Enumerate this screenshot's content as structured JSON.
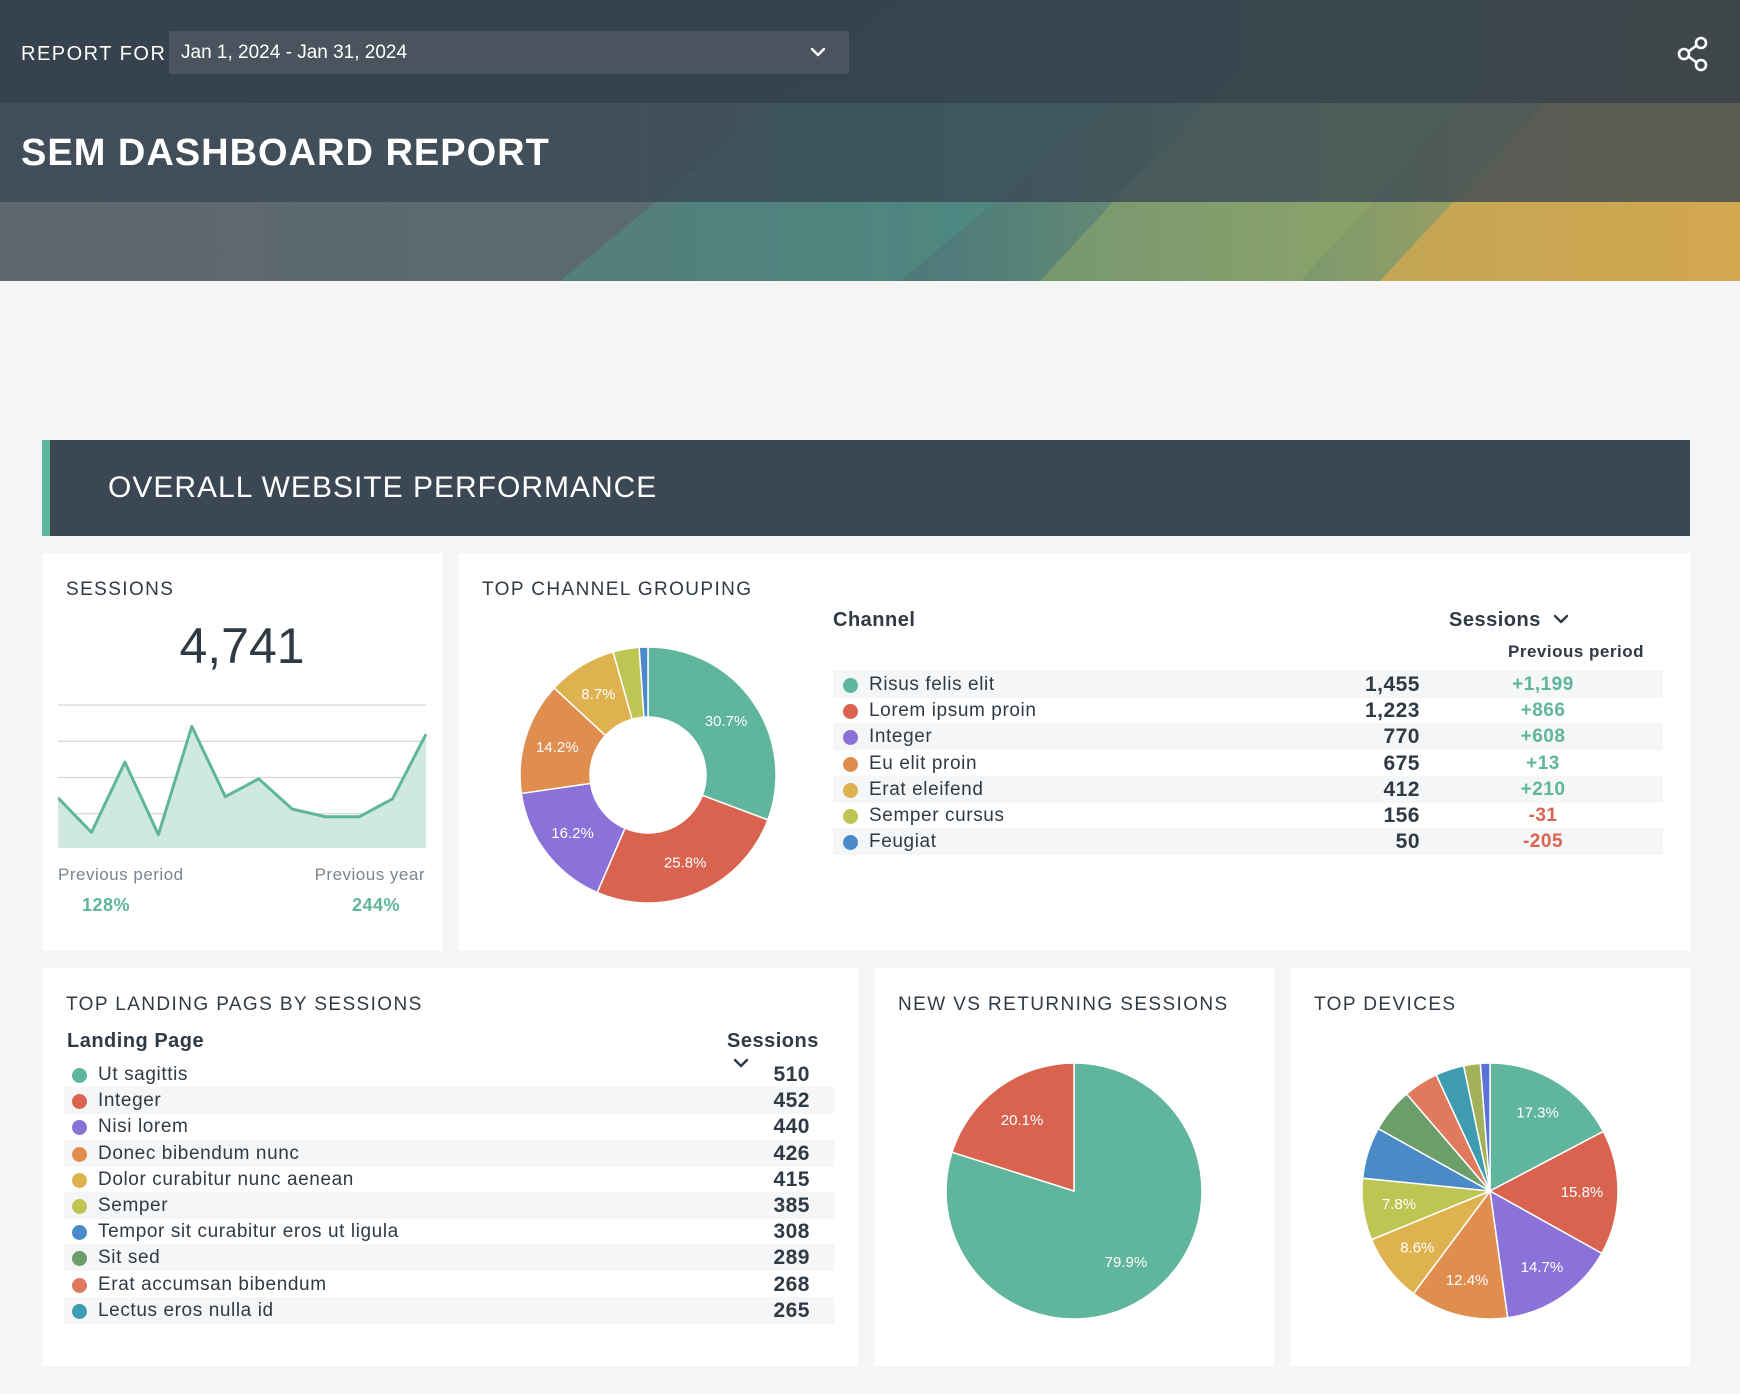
{
  "header": {
    "report_for_label": "REPORT FOR",
    "date_range": "Jan 1, 2024 - Jan 31, 2024",
    "title": "SEM DASHBOARD REPORT",
    "share_icon": "share-icon",
    "chevron_icon": "chevron-down-icon"
  },
  "section": {
    "title": "OVERALL WEBSITE PERFORMANCE",
    "accent": "#5fb69c"
  },
  "sessions_card": {
    "title": "SESSIONS",
    "value": "4,741",
    "previous_period_label": "Previous period",
    "previous_period_value": "128%",
    "previous_year_label": "Previous year",
    "previous_year_value": "244%"
  },
  "channel_card": {
    "title": "TOP CHANNEL GROUPING",
    "col_channel": "Channel",
    "col_sessions": "Sessions",
    "col_previous": "Previous period",
    "rows": [
      {
        "label": "Risus felis elit",
        "sessions": "1,455",
        "delta": "+1,199",
        "color": "#5fb69c"
      },
      {
        "label": "Lorem ipsum proin",
        "sessions": "1,223",
        "delta": "+866",
        "color": "#d9634f"
      },
      {
        "label": "Integer",
        "sessions": "770",
        "delta": "+608",
        "color": "#8a72d8"
      },
      {
        "label": "Eu elit proin",
        "sessions": "675",
        "delta": "+13",
        "color": "#e08d50"
      },
      {
        "label": "Erat eleifend",
        "sessions": "412",
        "delta": "+210",
        "color": "#ddb24f"
      },
      {
        "label": "Semper cursus",
        "sessions": "156",
        "delta": "-31",
        "color": "#bec552"
      },
      {
        "label": "Feugiat",
        "sessions": "50",
        "delta": "-205",
        "color": "#4a8bc7"
      }
    ]
  },
  "landing_card": {
    "title": "TOP LANDING PAGS BY SESSIONS",
    "col_page": "Landing Page",
    "col_sessions": "Sessions",
    "rows": [
      {
        "label": "Ut sagittis",
        "sessions": "510",
        "color": "#5fb69c"
      },
      {
        "label": "Integer",
        "sessions": "452",
        "color": "#d9634f"
      },
      {
        "label": "Nisi lorem",
        "sessions": "440",
        "color": "#8a72d8"
      },
      {
        "label": "Donec bibendum nunc",
        "sessions": "426",
        "color": "#e08d50"
      },
      {
        "label": "Dolor curabitur nunc aenean",
        "sessions": "415",
        "color": "#ddb24f"
      },
      {
        "label": "Semper",
        "sessions": "385",
        "color": "#bec552"
      },
      {
        "label": "Tempor sit curabitur eros ut ligula",
        "sessions": "308",
        "color": "#4a8bc7"
      },
      {
        "label": "Sit sed",
        "sessions": "289",
        "color": "#6b9e68"
      },
      {
        "label": "Erat accumsan bibendum",
        "sessions": "268",
        "color": "#e07a5f"
      },
      {
        "label": "Lectus eros nulla id",
        "sessions": "265",
        "color": "#3f9bb0"
      }
    ]
  },
  "newret_card": {
    "title": "NEW VS RETURNING SESSIONS"
  },
  "devices_card": {
    "title": "TOP DEVICES"
  },
  "chart_data": [
    {
      "type": "area",
      "name": "sessions-sparkline",
      "values": [
        45,
        14,
        77,
        12,
        109,
        46,
        62,
        35,
        28,
        28,
        44,
        102
      ],
      "ylim": [
        0,
        130
      ],
      "grid": true
    },
    {
      "type": "pie",
      "name": "top-channel-grouping",
      "donut": true,
      "labels": [
        "Risus felis elit",
        "Lorem ipsum proin",
        "Integer",
        "Eu elit proin",
        "Erat eleifend",
        "Semper cursus",
        "Feugiat"
      ],
      "values": [
        30.7,
        25.8,
        16.2,
        14.2,
        8.7,
        3.3,
        1.1
      ],
      "slice_labels": [
        "30.7%",
        "25.8%",
        "16.2%",
        "14.2%",
        "8.7%",
        "",
        ""
      ],
      "colors": [
        "#5fb69c",
        "#d9634f",
        "#8a72d8",
        "#e08d50",
        "#ddb24f",
        "#bec552",
        "#4a8bc7"
      ]
    },
    {
      "type": "pie",
      "name": "new-vs-returning",
      "values": [
        79.9,
        20.1
      ],
      "slice_labels": [
        "79.9%",
        "20.1%"
      ],
      "colors": [
        "#5fb69c",
        "#d9634f"
      ]
    },
    {
      "type": "pie",
      "name": "top-devices",
      "values": [
        17.3,
        15.8,
        14.7,
        12.4,
        8.6,
        7.8,
        6.5,
        5.6,
        4.4,
        3.6,
        2.1,
        1.2
      ],
      "slice_labels": [
        "17.3%",
        "15.8%",
        "14.7%",
        "12.4%",
        "8.6%",
        "7.8%",
        "",
        "",
        "",
        "",
        "",
        ""
      ],
      "colors": [
        "#5fb69c",
        "#d9634f",
        "#8a72d8",
        "#e08d50",
        "#ddb24f",
        "#bec552",
        "#4a8bc7",
        "#6b9e68",
        "#e07a5f",
        "#3f9bb0",
        "#a3b15a",
        "#5b73d6"
      ]
    }
  ]
}
